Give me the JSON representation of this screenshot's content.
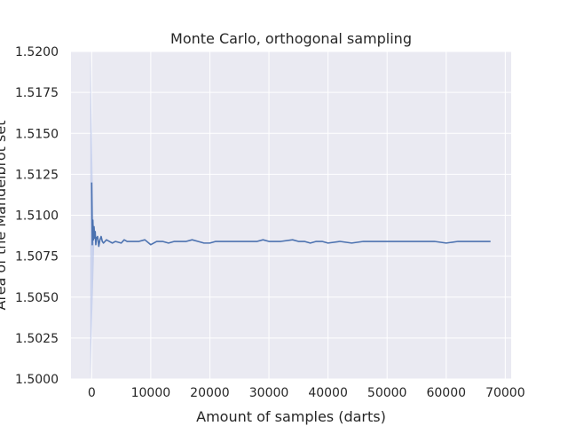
{
  "chart_data": {
    "type": "line",
    "title": "Monte Carlo, orthogonal sampling",
    "xlabel": "Amount of samples (darts)",
    "ylabel": "Area of the Mandelbrot set",
    "xlim": [
      -3500,
      71000
    ],
    "ylim": [
      1.5,
      1.52
    ],
    "x_ticks": [
      0,
      10000,
      20000,
      30000,
      40000,
      50000,
      60000,
      70000
    ],
    "y_ticks": [
      1.5,
      1.5025,
      1.505,
      1.5075,
      1.51,
      1.5125,
      1.515,
      1.5175,
      1.52
    ],
    "grid": true,
    "background": "#eaeaf2",
    "series": [
      {
        "color": "#4c72b0",
        "band_color": "#a8b8e6",
        "x": [
          0,
          100,
          200,
          300,
          400,
          500,
          600,
          700,
          800,
          1000,
          1200,
          1400,
          1600,
          1800,
          2000,
          2500,
          3000,
          3500,
          4000,
          5000,
          5500,
          6000,
          7000,
          8000,
          9000,
          10000,
          11000,
          12000,
          13000,
          14000,
          16000,
          17000,
          18000,
          19000,
          20000,
          21000,
          23000,
          25000,
          26000,
          28000,
          29000,
          30000,
          31000,
          32000,
          34000,
          35000,
          36000,
          37000,
          38000,
          39000,
          40000,
          42000,
          44000,
          46000,
          48000,
          50000,
          52000,
          54000,
          56000,
          58000,
          60000,
          62000,
          64000,
          66000,
          67500
        ],
        "y": [
          1.512,
          1.5082,
          1.5097,
          1.5085,
          1.5093,
          1.5086,
          1.509,
          1.5082,
          1.5086,
          1.5087,
          1.5081,
          1.5085,
          1.5087,
          1.5084,
          1.5083,
          1.5085,
          1.5084,
          1.5083,
          1.5084,
          1.5083,
          1.5085,
          1.5084,
          1.5084,
          1.5084,
          1.5085,
          1.5082,
          1.5084,
          1.5084,
          1.5083,
          1.5084,
          1.5084,
          1.5085,
          1.5084,
          1.5083,
          1.5083,
          1.5084,
          1.5084,
          1.5084,
          1.5084,
          1.5084,
          1.5085,
          1.5084,
          1.5084,
          1.5084,
          1.5085,
          1.5084,
          1.5084,
          1.5083,
          1.5084,
          1.5084,
          1.5083,
          1.5084,
          1.5083,
          1.5084,
          1.5084,
          1.5084,
          1.5084,
          1.5084,
          1.5084,
          1.5084,
          1.5083,
          1.5084,
          1.5084,
          1.5084,
          1.5084
        ]
      }
    ]
  }
}
